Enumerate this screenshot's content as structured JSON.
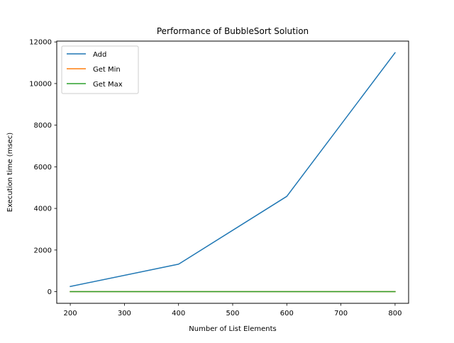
{
  "chart_data": {
    "type": "line",
    "title": "Performance of BubbleSort Solution",
    "xlabel": "Number of List Elements",
    "ylabel": "Execution time (msec)",
    "x": [
      200,
      400,
      600,
      800
    ],
    "series": [
      {
        "name": "Add",
        "values": [
          250,
          1320,
          4580,
          11480
        ],
        "color": "#1f77b4"
      },
      {
        "name": "Get Min",
        "values": [
          1,
          1,
          2,
          2
        ],
        "color": "#ff7f0e"
      },
      {
        "name": "Get Max",
        "values": [
          1,
          1,
          2,
          2
        ],
        "color": "#2ca02c"
      }
    ],
    "xlim": [
      175,
      825
    ],
    "ylim": [
      -560,
      12040
    ],
    "xticks": [
      200,
      300,
      400,
      500,
      600,
      700,
      800
    ],
    "yticks": [
      0,
      2000,
      4000,
      6000,
      8000,
      10000,
      12000
    ],
    "grid": false,
    "legend_position": "upper-left"
  }
}
